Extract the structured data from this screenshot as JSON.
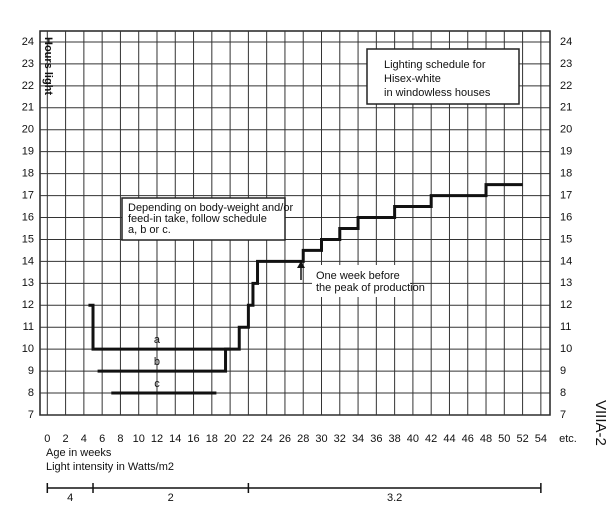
{
  "chart_data": {
    "type": "step",
    "title": [
      "Lighting schedule for",
      "Hisex-white",
      "in windowless houses"
    ],
    "y_label": "Hours light",
    "x_label": "Age in weeks",
    "x_end_label": "etc.",
    "figure_id": "VIIIA-2",
    "annotations": [
      {
        "lines": [
          "Depending on body-weight and/or",
          "feed-in take, follow schedule",
          "a, b or c."
        ]
      },
      {
        "lines": [
          "One week before",
          "the peak of production"
        ]
      }
    ],
    "xlim": [
      -0.8,
      55
    ],
    "ylim": [
      7,
      24.5
    ],
    "xticks": [
      0,
      2,
      4,
      6,
      8,
      10,
      12,
      14,
      16,
      18,
      20,
      22,
      24,
      26,
      28,
      30,
      32,
      34,
      36,
      38,
      40,
      42,
      44,
      46,
      48,
      50,
      52,
      54
    ],
    "yticks": [
      7,
      8,
      9,
      10,
      11,
      12,
      13,
      14,
      15,
      16,
      17,
      18,
      19,
      20,
      21,
      22,
      23,
      24
    ],
    "grid": true,
    "series": [
      {
        "name": "a",
        "color": "#111",
        "x": [
          4.5,
          5,
          21,
          22,
          22.5,
          23,
          28,
          30,
          32,
          34,
          38,
          42,
          48,
          52
        ],
        "values": [
          12,
          10,
          11,
          12,
          13,
          14,
          14.5,
          15,
          15.5,
          16,
          16.5,
          17,
          17.5,
          17.5
        ]
      },
      {
        "name": "b",
        "color": "#111",
        "x": [
          5.5,
          19.5,
          20
        ],
        "values": [
          9,
          10,
          10
        ]
      },
      {
        "name": "c",
        "color": "#111",
        "x": [
          7,
          18.5
        ],
        "values": [
          8,
          8
        ]
      }
    ],
    "light_intensity": {
      "label": "Light intensity in Watts/m2",
      "breaks": [
        0,
        5,
        22,
        54
      ],
      "values": [
        4,
        2,
        3.2
      ]
    }
  }
}
